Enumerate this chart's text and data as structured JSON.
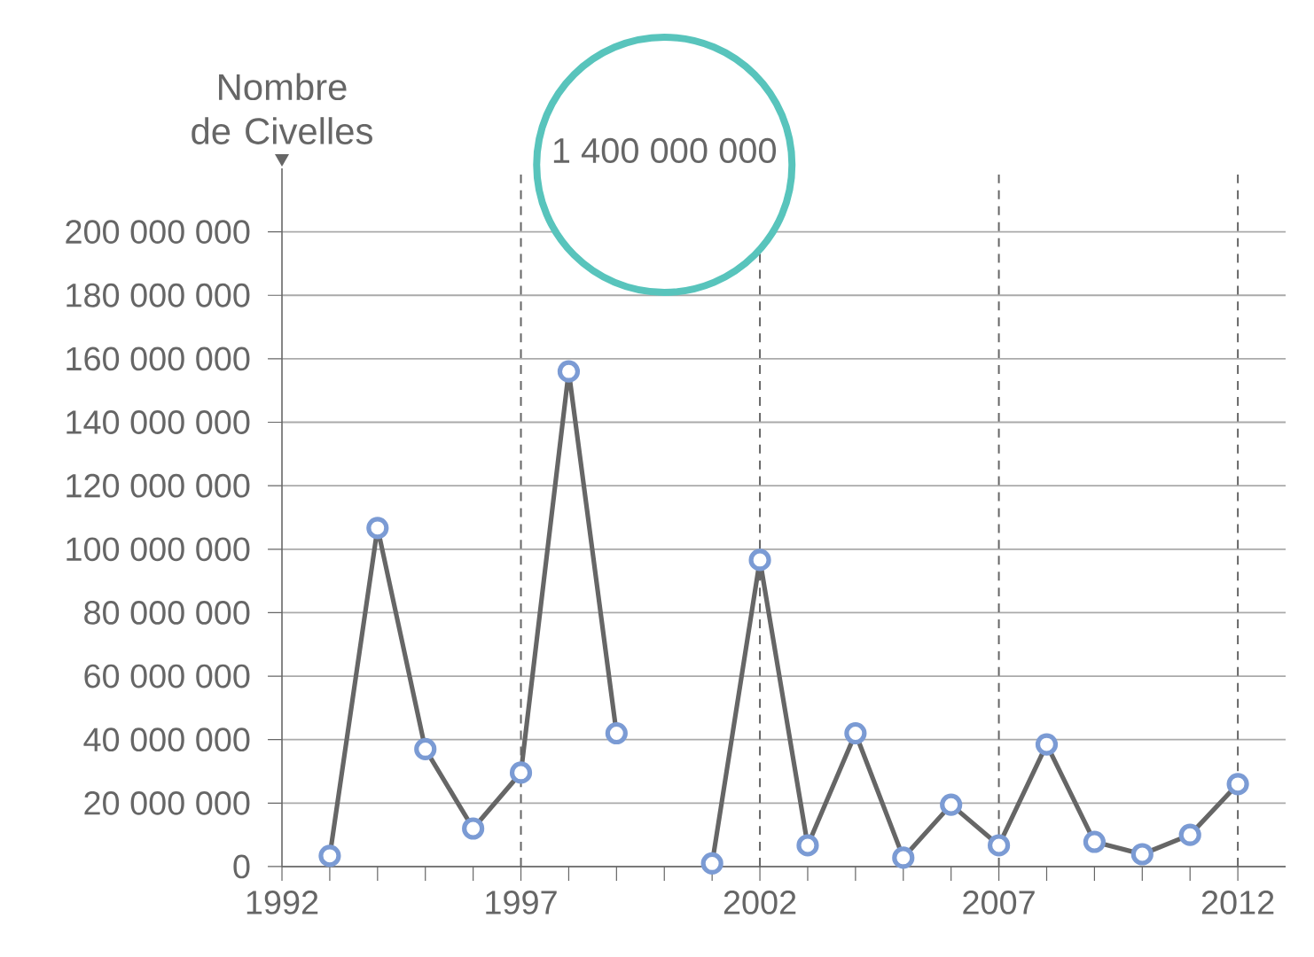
{
  "chart_data": {
    "type": "line",
    "ylabel": "Nombre de Civelles",
    "x": [
      1993,
      1994,
      1995,
      1996,
      1997,
      1998,
      1999,
      2000,
      2001,
      2002,
      2003,
      2004,
      2005,
      2006,
      2007,
      2008,
      2009,
      2010,
      2011,
      2012
    ],
    "series": [
      {
        "color": "#666666",
        "values": [
          3400000,
          106700000,
          37000000,
          12000000,
          29600000,
          156000000,
          42000000,
          null,
          1000000,
          96600000,
          6700000,
          42000000,
          2800000,
          19500000,
          6700000,
          38500000,
          7800000,
          3900000,
          10000000,
          26000000
        ]
      }
    ],
    "marker": "circle",
    "grid": "y",
    "xlim": [
      1992,
      2013
    ],
    "ylim": [
      0,
      220000000
    ],
    "xticks": [
      1992,
      {
        "value": 1993,
        "label": null
      },
      {
        "value": 1994,
        "label": null
      },
      {
        "value": 1995,
        "label": null
      },
      {
        "value": 1996,
        "label": null
      },
      1997,
      {
        "value": 1998,
        "label": null
      },
      {
        "value": 1999,
        "label": null
      },
      {
        "value": 2000,
        "label": null
      },
      {
        "value": 2001,
        "label": null
      },
      2002,
      {
        "value": 2003,
        "label": null
      },
      {
        "value": 2004,
        "label": null
      },
      {
        "value": 2005,
        "label": null
      },
      {
        "value": 2006,
        "label": null
      },
      2007,
      {
        "value": 2008,
        "label": null
      },
      {
        "value": 2009,
        "label": null
      },
      {
        "value": 2010,
        "label": null
      },
      {
        "value": 2011,
        "label": null
      },
      2012
    ],
    "yticks": [
      {
        "value": 0,
        "label": "0"
      },
      {
        "value": 20000000,
        "label": "20 000 000"
      },
      {
        "value": 40000000,
        "label": "40 000 000"
      },
      {
        "value": 60000000,
        "label": "60 000 000"
      },
      {
        "value": 80000000,
        "label": "80 000 000"
      },
      {
        "value": 100000000,
        "label": "100 000 000"
      },
      {
        "value": 120000000,
        "label": "120 000 000"
      },
      {
        "value": 140000000,
        "label": "140 000 000"
      },
      {
        "value": 160000000,
        "label": "160 000 000"
      },
      {
        "value": 180000000,
        "label": "180 000 000"
      },
      {
        "value": 200000000,
        "label": "200 000 000"
      }
    ],
    "ref_lines": [
      {
        "axis": "x",
        "value": 1997,
        "color": "#666666",
        "line_style": "dashed"
      },
      {
        "axis": "x",
        "value": 2002,
        "color": "#666666",
        "line_style": "dashed"
      },
      {
        "axis": "x",
        "value": 2007,
        "color": "#666666",
        "line_style": "dashed"
      },
      {
        "axis": "x",
        "value": 2012,
        "color": "#666666",
        "line_style": "dashed"
      }
    ],
    "annotations": [
      "1 400 000 000"
    ]
  }
}
